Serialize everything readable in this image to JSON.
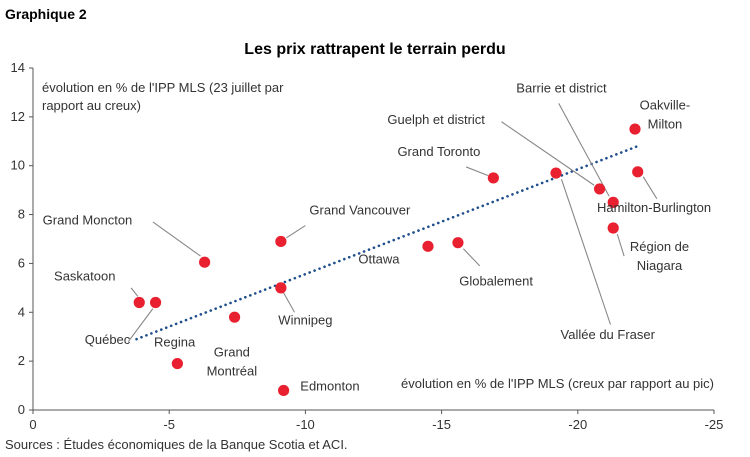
{
  "figure_label": "Graphique 2",
  "source": "Sources : Études économiques de la Banque Scotia et ACI.",
  "colors": {
    "point": "#e8202f",
    "trend": "#1f4e8c",
    "axis": "#555555",
    "leader": "#888888"
  },
  "chart_data": {
    "type": "scatter",
    "title": "Les prix rattrapent le terrain perdu",
    "ylabel_note": [
      "évolution en % de l'IPP MLS (23 juillet par",
      "rapport au creux)"
    ],
    "xlabel_note": "évolution en % de l'IPP MLS (creux par rapport au pic)",
    "xlim": [
      0,
      -25
    ],
    "ylim": [
      0,
      14
    ],
    "x_ticks": [
      0,
      -5,
      -10,
      -15,
      -20,
      -25
    ],
    "y_ticks": [
      0,
      2,
      4,
      6,
      8,
      10,
      12,
      14
    ],
    "grid": false,
    "trendline": {
      "style": "dotted",
      "from": [
        -3.8,
        2.9
      ],
      "to": [
        -22.2,
        10.8
      ]
    },
    "points": [
      {
        "label": [
          "Saskatoon"
        ],
        "x": -3.9,
        "y": 4.4,
        "lx": -1.9,
        "ly": 5.3,
        "anchor": "middle",
        "leader": [
          [
            -3.6,
            5.0
          ],
          [
            -3.85,
            4.65
          ]
        ]
      },
      {
        "label": [
          "Québec"
        ],
        "x": -4.5,
        "y": 4.4,
        "lx": -1.9,
        "ly": 2.7,
        "anchor": "start",
        "leader": [
          [
            -3.5,
            2.8
          ],
          [
            -4.4,
            4.15
          ]
        ]
      },
      {
        "label": [
          "Regina"
        ],
        "x": -5.3,
        "y": 1.9,
        "lx": -5.2,
        "ly": 2.6,
        "anchor": "middle",
        "leader": null
      },
      {
        "label": [
          "Grand Moncton"
        ],
        "x": -6.3,
        "y": 6.05,
        "lx": -2.0,
        "ly": 7.6,
        "anchor": "middle",
        "leader": [
          [
            -4.4,
            7.7
          ],
          [
            -6.15,
            6.3
          ]
        ]
      },
      {
        "label": [
          "Grand",
          "Montréal"
        ],
        "x": -7.4,
        "y": 3.8,
        "lx": -7.3,
        "ly": 2.2,
        "anchor": "middle",
        "leader": null
      },
      {
        "label": [
          "Grand Vancouver"
        ],
        "x": -9.1,
        "y": 6.9,
        "lx": -12.0,
        "ly": 8.0,
        "anchor": "middle",
        "leader": [
          [
            -10.0,
            7.55
          ],
          [
            -9.3,
            7.05
          ]
        ]
      },
      {
        "label": [
          "Winnipeg"
        ],
        "x": -9.1,
        "y": 5.0,
        "lx": -10.0,
        "ly": 3.5,
        "anchor": "middle",
        "leader": [
          [
            -9.6,
            4.0
          ],
          [
            -9.2,
            4.8
          ]
        ]
      },
      {
        "label": [
          "Edmonton"
        ],
        "x": -9.2,
        "y": 0.8,
        "lx": -10.9,
        "ly": 0.8,
        "anchor": "middle",
        "leader": null
      },
      {
        "label": [
          "Ottawa"
        ],
        "x": -14.5,
        "y": 6.7,
        "lx": -12.7,
        "ly": 6.0,
        "anchor": "middle",
        "leader": null
      },
      {
        "label": [
          "Globalement"
        ],
        "x": -15.6,
        "y": 6.85,
        "lx": -17.0,
        "ly": 5.1,
        "anchor": "middle",
        "leader": [
          [
            -16.4,
            5.9
          ],
          [
            -15.8,
            6.6
          ]
        ]
      },
      {
        "label": [
          "Grand Toronto"
        ],
        "x": -16.9,
        "y": 9.5,
        "lx": -14.9,
        "ly": 10.4,
        "anchor": "middle",
        "leader": [
          [
            -15.9,
            9.95
          ],
          [
            -16.7,
            9.6
          ]
        ]
      },
      {
        "label": [
          "Guelph et district"
        ],
        "x": -20.8,
        "y": 9.05,
        "lx": -14.8,
        "ly": 11.7,
        "anchor": "middle",
        "leader": [
          [
            -17.2,
            11.8
          ],
          [
            -20.6,
            9.2
          ]
        ]
      },
      {
        "label": [
          "Barrie et district"
        ],
        "x": -21.3,
        "y": 8.5,
        "lx": -19.4,
        "ly": 13.0,
        "anchor": "middle",
        "leader": [
          [
            -19.3,
            12.55
          ],
          [
            -21.15,
            8.75
          ]
        ]
      },
      {
        "label": [
          "Vallée du Fraser"
        ],
        "x": -19.2,
        "y": 9.7,
        "lx": -21.1,
        "ly": 2.9,
        "anchor": "middle",
        "leader": [
          [
            -21.2,
            3.5
          ],
          [
            -19.4,
            9.45
          ]
        ]
      },
      {
        "label": [
          "Oakville-",
          "Milton"
        ],
        "x": -22.1,
        "y": 11.5,
        "lx": -23.2,
        "ly": 12.3,
        "anchor": "middle",
        "leader": null
      },
      {
        "label": [
          "Hamilton-Burlington"
        ],
        "x": -22.2,
        "y": 9.75,
        "lx": -22.8,
        "ly": 8.1,
        "anchor": "middle",
        "leader": [
          [
            -22.9,
            8.65
          ],
          [
            -22.4,
            9.55
          ]
        ]
      },
      {
        "label": [
          "Région de",
          "Niagara"
        ],
        "x": -21.3,
        "y": 7.45,
        "lx": -23.0,
        "ly": 6.5,
        "anchor": "middle",
        "leader": [
          [
            -21.7,
            6.3
          ],
          [
            -21.45,
            7.2
          ]
        ]
      }
    ]
  }
}
